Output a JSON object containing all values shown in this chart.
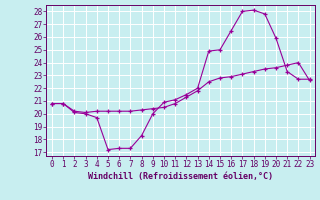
{
  "xlabel": "Windchill (Refroidissement éolien,°C)",
  "background_color": "#c8eef0",
  "grid_color": "#ffffff",
  "line_color": "#990099",
  "marker": "+",
  "xlim": [
    -0.5,
    23.5
  ],
  "ylim": [
    16.7,
    28.5
  ],
  "yticks": [
    17,
    18,
    19,
    20,
    21,
    22,
    23,
    24,
    25,
    26,
    27,
    28
  ],
  "xticks": [
    0,
    1,
    2,
    3,
    4,
    5,
    6,
    7,
    8,
    9,
    10,
    11,
    12,
    13,
    14,
    15,
    16,
    17,
    18,
    19,
    20,
    21,
    22,
    23
  ],
  "line1_x": [
    0,
    1,
    2,
    3,
    4,
    5,
    6,
    7,
    8,
    9,
    10,
    11,
    12,
    13,
    14,
    15,
    16,
    17,
    18,
    19,
    20,
    21,
    22,
    23
  ],
  "line1_y": [
    20.8,
    20.8,
    20.1,
    20.0,
    19.7,
    17.2,
    17.3,
    17.3,
    18.3,
    20.0,
    20.9,
    21.1,
    21.5,
    22.0,
    24.9,
    25.0,
    26.5,
    28.0,
    28.1,
    27.8,
    25.9,
    23.3,
    22.7,
    22.7
  ],
  "line2_x": [
    0,
    1,
    2,
    3,
    4,
    5,
    6,
    7,
    8,
    9,
    10,
    11,
    12,
    13,
    14,
    15,
    16,
    17,
    18,
    19,
    20,
    21,
    22,
    23
  ],
  "line2_y": [
    20.8,
    20.8,
    20.2,
    20.1,
    20.2,
    20.2,
    20.2,
    20.2,
    20.3,
    20.4,
    20.5,
    20.8,
    21.3,
    21.8,
    22.5,
    22.8,
    22.9,
    23.1,
    23.3,
    23.5,
    23.6,
    23.8,
    24.0,
    22.6
  ],
  "tick_fontsize": 5.5,
  "xlabel_fontsize": 6.0,
  "tick_color": "#660066",
  "spine_color": "#660066"
}
